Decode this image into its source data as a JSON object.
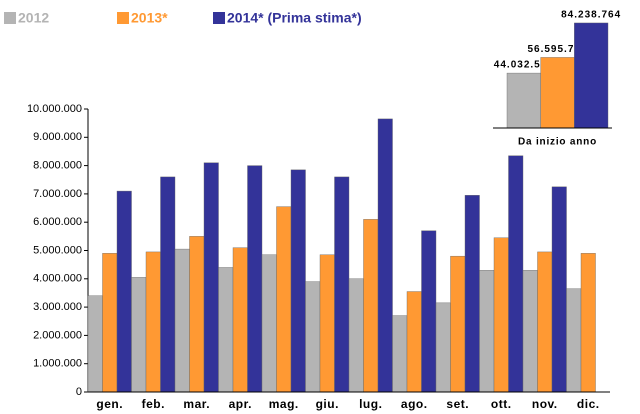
{
  "chart_data": [
    {
      "type": "bar",
      "categories": [
        "gen.",
        "feb.",
        "mar.",
        "apr.",
        "mag.",
        "giu.",
        "lug.",
        "ago.",
        "set.",
        "ott.",
        "nov.",
        "dic."
      ],
      "series": [
        {
          "name": "2012",
          "color": "#b4b4b4",
          "values": [
            3400000,
            4050000,
            5050000,
            4400000,
            4850000,
            3900000,
            4000000,
            2700000,
            3150000,
            4300000,
            4300000,
            3650000
          ]
        },
        {
          "name": "2013*",
          "color": "#ff9933",
          "values": [
            4900000,
            4950000,
            5500000,
            5100000,
            6550000,
            4850000,
            6100000,
            3550000,
            4800000,
            5450000,
            4950000,
            4900000
          ]
        },
        {
          "name": "2014* (Prima stima*)",
          "color": "#333399",
          "values": [
            7100000,
            7600000,
            8100000,
            8000000,
            7850000,
            7600000,
            9650000,
            5700000,
            6950000,
            8350000,
            7250000,
            null
          ]
        }
      ],
      "ylim": [
        0,
        10000000
      ],
      "yticks": [
        0,
        {
          "value": 1000000,
          "label": "1.000.000"
        },
        {
          "value": 2000000,
          "label": "2.000.000"
        },
        {
          "value": 3000000,
          "label": "3.000.000"
        },
        {
          "value": 4000000,
          "label": "4.000.000"
        },
        {
          "value": 5000000,
          "label": "5.000.000"
        },
        {
          "value": 6000000,
          "label": "6.000.000"
        },
        {
          "value": 7000000,
          "label": "7.000.000"
        },
        {
          "value": 8000000,
          "label": "8.000.000"
        },
        {
          "value": 9000000,
          "label": "9.000.000"
        },
        {
          "value": 10000000,
          "label": "10.000.000"
        }
      ],
      "legend": "top-left"
    },
    {
      "type": "bar",
      "categories": [
        "Da inizio anno"
      ],
      "series": [
        {
          "color": "#b4b4b4",
          "values": [
            44032537
          ],
          "value_labels": [
            "44.032.537"
          ]
        },
        {
          "color": "#ff9933",
          "values": [
            56595725
          ],
          "value_labels": [
            "56.595.725"
          ]
        },
        {
          "color": "#333399",
          "values": [
            84238764
          ],
          "value_labels": [
            "84.238.764"
          ]
        }
      ],
      "ylim": [
        0,
        85000000
      ]
    }
  ]
}
